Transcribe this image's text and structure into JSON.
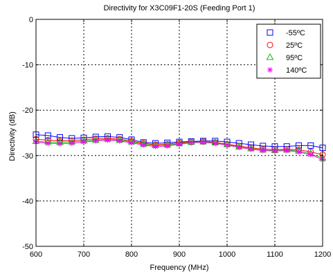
{
  "chart_data": {
    "type": "line",
    "title": "Directivity for X3C09F1-20S (Feeding Port 1)",
    "xlabel": "Frequency (MHz)",
    "ylabel": "Directivity (dB)",
    "xlim": [
      600,
      1200
    ],
    "ylim": [
      -50,
      0
    ],
    "xticks": [
      "600",
      "700",
      "800",
      "900",
      "1000",
      "1100",
      "1200"
    ],
    "yticks": [
      "0",
      "-10",
      "-20",
      "-30",
      "-40",
      "-50"
    ],
    "grid": true,
    "legend_position": "top-right",
    "x": [
      600,
      625,
      650,
      675,
      700,
      725,
      750,
      775,
      800,
      825,
      850,
      875,
      900,
      925,
      950,
      975,
      1000,
      1025,
      1050,
      1075,
      1100,
      1125,
      1150,
      1175,
      1200
    ],
    "series": [
      {
        "name": "-55ºC",
        "marker": "square",
        "color": "#0000ff",
        "values": [
          -25.4,
          -25.6,
          -26.0,
          -26.2,
          -26.1,
          -25.9,
          -25.8,
          -26.0,
          -26.5,
          -27.1,
          -27.3,
          -27.2,
          -27.0,
          -26.9,
          -26.8,
          -26.8,
          -27.0,
          -27.3,
          -27.6,
          -27.9,
          -28.0,
          -28.0,
          -27.8,
          -27.8,
          -28.3
        ]
      },
      {
        "name": "25ºC",
        "marker": "circle",
        "color": "#ff0000",
        "values": [
          -26.4,
          -26.6,
          -26.8,
          -26.7,
          -26.5,
          -26.3,
          -26.2,
          -26.4,
          -26.8,
          -27.3,
          -27.6,
          -27.5,
          -27.2,
          -27.0,
          -26.9,
          -27.1,
          -27.5,
          -27.9,
          -28.3,
          -28.6,
          -28.7,
          -28.6,
          -28.7,
          -29.2,
          -29.8
        ]
      },
      {
        "name": "95ºC",
        "marker": "triangle",
        "color": "#00c000",
        "values": [
          -26.9,
          -27.0,
          -27.1,
          -27.0,
          -26.8,
          -26.6,
          -26.4,
          -26.6,
          -27.0,
          -27.5,
          -27.8,
          -27.7,
          -27.4,
          -27.1,
          -27.0,
          -27.2,
          -27.6,
          -28.1,
          -28.5,
          -28.8,
          -28.9,
          -28.8,
          -29.0,
          -29.6,
          -30.6
        ]
      },
      {
        "name": "140ºC",
        "marker": "asterisk",
        "color": "#ff00ff",
        "values": [
          -27.0,
          -27.3,
          -27.4,
          -27.3,
          -27.0,
          -26.8,
          -26.6,
          -26.8,
          -27.2,
          -27.7,
          -28.0,
          -27.9,
          -27.5,
          -27.2,
          -27.1,
          -27.3,
          -27.7,
          -28.2,
          -28.6,
          -28.9,
          -29.0,
          -28.9,
          -29.2,
          -29.8,
          -30.9
        ]
      }
    ]
  }
}
